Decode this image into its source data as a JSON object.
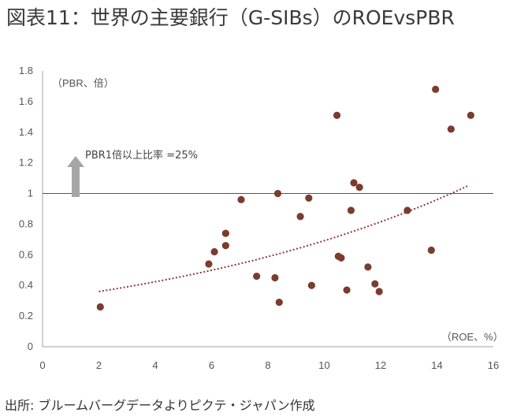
{
  "title": "図表11：世界の主要銀行（G-SIBs）のROEvsPBR",
  "source": "出所: ブルームバーグデータよりピクテ・ジャパン作成",
  "chart_data": {
    "type": "scatter",
    "title": "図表11：世界の主要銀行（G-SIBs）のROEvsPBR",
    "xlabel": "（ROE、%）",
    "ylabel": "（PBR、倍）",
    "xlim": [
      0,
      16
    ],
    "ylim": [
      0,
      1.8
    ],
    "x_ticks": [
      "0",
      "2",
      "4",
      "6",
      "8",
      "10",
      "12",
      "14",
      "16"
    ],
    "y_ticks": [
      "0",
      "0.2",
      "0.4",
      "0.6",
      "0.8",
      "1",
      "1.2",
      "1.4",
      "1.6",
      "1.8"
    ],
    "grid": false,
    "reference_line": {
      "y": 1
    },
    "annotation": "PBR1倍以上比率 =25%",
    "marker_color": "#7b3b2e",
    "trend_color": "#8b3a3a",
    "arrow_color": "#a6a6a6",
    "trend": {
      "type": "exponential",
      "x_range": [
        2.0,
        15.1
      ],
      "y_start": 0.36,
      "y_end": 1.05
    },
    "points": [
      {
        "x": 2.05,
        "y": 0.26
      },
      {
        "x": 5.9,
        "y": 0.54
      },
      {
        "x": 6.1,
        "y": 0.62
      },
      {
        "x": 6.5,
        "y": 0.74
      },
      {
        "x": 6.5,
        "y": 0.66
      },
      {
        "x": 7.05,
        "y": 0.96
      },
      {
        "x": 7.6,
        "y": 0.46
      },
      {
        "x": 8.25,
        "y": 0.45
      },
      {
        "x": 8.35,
        "y": 1.0
      },
      {
        "x": 8.4,
        "y": 0.29
      },
      {
        "x": 9.15,
        "y": 0.85
      },
      {
        "x": 9.45,
        "y": 0.97
      },
      {
        "x": 9.55,
        "y": 0.4
      },
      {
        "x": 10.45,
        "y": 1.51
      },
      {
        "x": 10.5,
        "y": 0.59
      },
      {
        "x": 10.6,
        "y": 0.58
      },
      {
        "x": 10.8,
        "y": 0.37
      },
      {
        "x": 10.95,
        "y": 0.89
      },
      {
        "x": 11.05,
        "y": 1.07
      },
      {
        "x": 11.25,
        "y": 1.04
      },
      {
        "x": 11.55,
        "y": 0.52
      },
      {
        "x": 11.8,
        "y": 0.41
      },
      {
        "x": 11.95,
        "y": 0.36
      },
      {
        "x": 12.95,
        "y": 0.89
      },
      {
        "x": 13.8,
        "y": 0.63
      },
      {
        "x": 13.95,
        "y": 1.68
      },
      {
        "x": 14.5,
        "y": 1.42
      },
      {
        "x": 15.2,
        "y": 1.51
      }
    ]
  }
}
